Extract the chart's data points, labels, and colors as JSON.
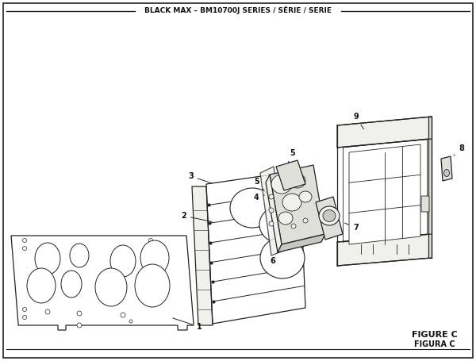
{
  "title": "BLACK MAX – BM10700J SERIES / SÉRIE / SERIE",
  "figure_label_1": "FIGURE C",
  "figure_label_2": "FIGURA C",
  "bg_color": "#ffffff",
  "line_color": "#222222",
  "text_color": "#111111",
  "fill_light": "#f0f0ec",
  "fill_mid": "#e0e0da",
  "fill_dark": "#c8c8c2"
}
